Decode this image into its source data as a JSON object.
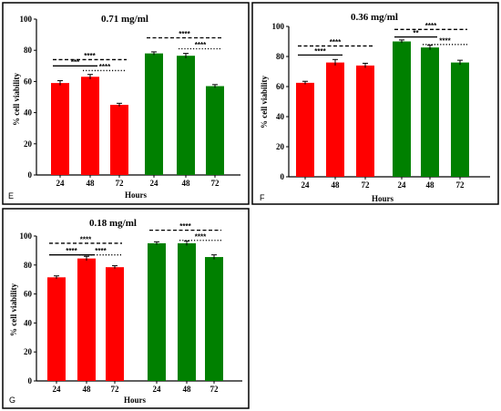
{
  "chart_data": [
    {
      "type": "bar",
      "panel": "E",
      "title": "0.71 mg/ml",
      "xlabel": "Hours",
      "ylabel": "% cell viability",
      "ylim": [
        0,
        100
      ],
      "yticks": [
        "0",
        "20",
        "40",
        "60",
        "80",
        "100"
      ],
      "categories": [
        "24",
        "48",
        "72"
      ],
      "series": [
        {
          "color": "#ff0000",
          "values": [
            59,
            63,
            45
          ],
          "errors": [
            1.5,
            1.5,
            1
          ]
        },
        {
          "color": "#008000",
          "values": [
            78,
            76.5,
            57
          ],
          "errors": [
            1,
            1.5,
            1
          ]
        }
      ],
      "annotations": [
        {
          "series": 0,
          "from": 0,
          "to": 1,
          "style": "solid",
          "label": "***",
          "y": 70
        },
        {
          "series": 0,
          "from": 0,
          "to": 2,
          "style": "dashed",
          "label": "****",
          "y": 74
        },
        {
          "series": 0,
          "from": 1,
          "to": 2,
          "style": "dotted",
          "label": "****",
          "y": 67
        },
        {
          "series": 1,
          "from": 0,
          "to": 2,
          "style": "dashed",
          "label": "****",
          "y": 88
        },
        {
          "series": 1,
          "from": 1,
          "to": 2,
          "style": "dotted",
          "label": "****",
          "y": 81
        }
      ]
    },
    {
      "type": "bar",
      "panel": "F",
      "title": "0.36 mg/ml",
      "xlabel": "Hours",
      "ylabel": "% cell viability",
      "ylim": [
        0,
        100
      ],
      "yticks": [
        "0",
        "20",
        "40",
        "60",
        "80",
        "100"
      ],
      "categories": [
        "24",
        "48",
        "72"
      ],
      "series": [
        {
          "color": "#ff0000",
          "values": [
            62.5,
            76,
            74
          ],
          "errors": [
            1,
            2,
            1.5
          ]
        },
        {
          "color": "#008000",
          "values": [
            90,
            86,
            76
          ],
          "errors": [
            1,
            1.5,
            1.5
          ]
        }
      ],
      "annotations": [
        {
          "series": 0,
          "from": 0,
          "to": 1,
          "style": "solid",
          "label": "****",
          "y": 81
        },
        {
          "series": 0,
          "from": 0,
          "to": 2,
          "style": "dashed",
          "label": "****",
          "y": 87
        },
        {
          "series": 1,
          "from": 0,
          "to": 1,
          "style": "solid",
          "label": "**",
          "y": 93
        },
        {
          "series": 1,
          "from": 0,
          "to": 2,
          "style": "dashed",
          "label": "****",
          "y": 98
        },
        {
          "series": 1,
          "from": 1,
          "to": 2,
          "style": "dotted",
          "label": "****",
          "y": 88
        }
      ]
    },
    {
      "type": "bar",
      "panel": "G",
      "title": "0.18 mg/ml",
      "xlabel": "Hours",
      "ylabel": "% cell viability",
      "ylim": [
        0,
        100
      ],
      "yticks": [
        "0",
        "20",
        "40",
        "60",
        "80",
        "100"
      ],
      "categories": [
        "24",
        "48",
        "72"
      ],
      "series": [
        {
          "color": "#ff0000",
          "values": [
            71.5,
            84.5,
            78.5
          ],
          "errors": [
            1,
            1.5,
            1
          ]
        },
        {
          "color": "#008000",
          "values": [
            95,
            95,
            85.5
          ],
          "errors": [
            1,
            1.5,
            1.5
          ]
        }
      ],
      "annotations": [
        {
          "series": 0,
          "from": 0,
          "to": 1,
          "style": "solid",
          "label": "****",
          "y": 87
        },
        {
          "series": 0,
          "from": 0,
          "to": 2,
          "style": "dashed",
          "label": "****",
          "y": 95
        },
        {
          "series": 0,
          "from": 1,
          "to": 2,
          "style": "dotted",
          "label": "****",
          "y": 87
        },
        {
          "series": 1,
          "from": 0,
          "to": 2,
          "style": "dashed",
          "label": "****",
          "y": 104
        },
        {
          "series": 1,
          "from": 1,
          "to": 2,
          "style": "dotted",
          "label": "****",
          "y": 97
        }
      ]
    }
  ]
}
